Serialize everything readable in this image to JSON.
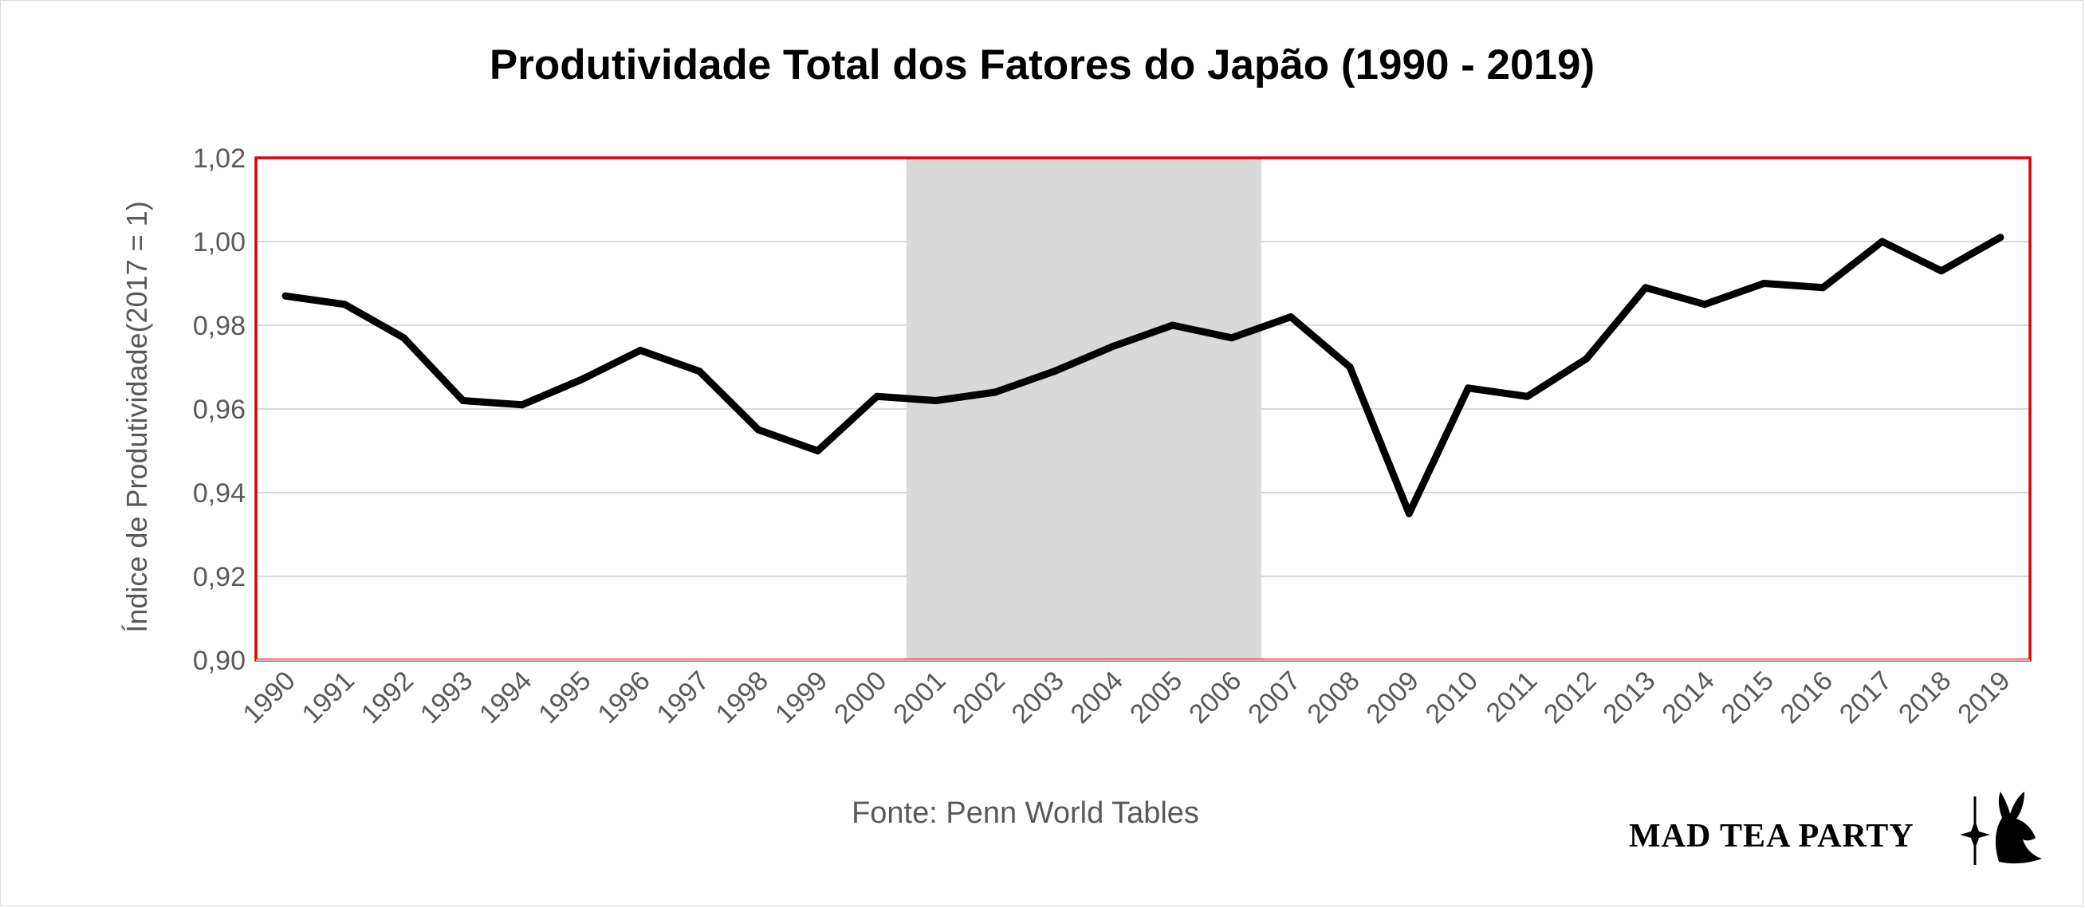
{
  "chart_data": {
    "type": "line",
    "title": "Produtividade Total dos Fatores do Japão (1990 - 2019)",
    "ylabel": "Índice de Produtividade(2017 = 1)",
    "xlabel": "",
    "ylim": [
      0.9,
      1.02
    ],
    "yticks": [
      0.9,
      0.92,
      0.94,
      0.96,
      0.98,
      1.0,
      1.02
    ],
    "ytick_labels": [
      "0,90",
      "0,92",
      "0,94",
      "0,96",
      "0,98",
      "1,00",
      "1,02"
    ],
    "categories": [
      "1990",
      "1991",
      "1992",
      "1993",
      "1994",
      "1995",
      "1996",
      "1997",
      "1998",
      "1999",
      "2000",
      "2001",
      "2002",
      "2003",
      "2004",
      "2005",
      "2006",
      "2007",
      "2008",
      "2009",
      "2010",
      "2011",
      "2012",
      "2013",
      "2014",
      "2015",
      "2016",
      "2017",
      "2018",
      "2019"
    ],
    "series": [
      {
        "values": [
          0.987,
          0.985,
          0.977,
          0.962,
          0.961,
          0.967,
          0.974,
          0.969,
          0.955,
          0.95,
          0.963,
          0.962,
          0.964,
          0.969,
          0.975,
          0.98,
          0.977,
          0.982,
          0.97,
          0.935,
          0.965,
          0.963,
          0.972,
          0.989,
          0.985,
          0.99,
          0.989,
          1.0,
          0.993,
          1.001
        ],
        "color": "#000000"
      }
    ],
    "shaded_region": {
      "from": "2001",
      "to": "2006",
      "color": "#d9d9d9"
    },
    "grid": true,
    "plot_border_color": "#e00000",
    "gridline_color": "#d9d9d9"
  },
  "source_note": "Fonte: Penn World Tables",
  "brand": {
    "name": "MAD TEA PARTY",
    "logo_icon": "rabbit-silhouette-icon"
  }
}
